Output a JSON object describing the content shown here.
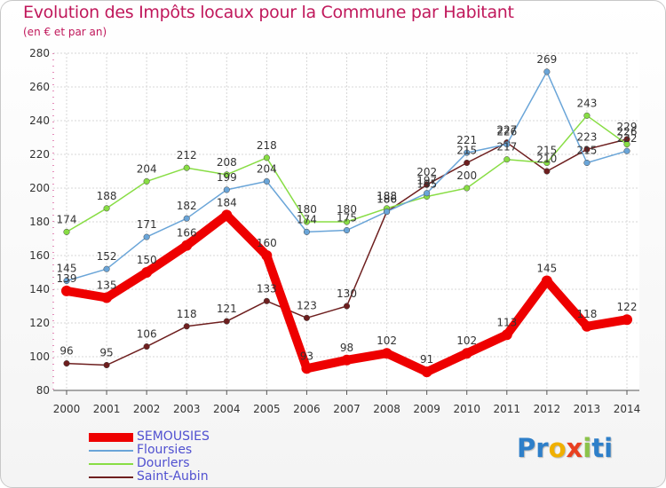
{
  "title": "Evolution des Impôts locaux pour la Commune par Habitant",
  "subtitle": "(en € et par an)",
  "logo": {
    "letters": [
      "P",
      "r",
      "o",
      "x",
      "i",
      "t",
      "i"
    ],
    "colors": [
      "#2e7fc9",
      "#2e7fc9",
      "#f0b000",
      "#e94020",
      "#8bc34a",
      "#2e7fc9",
      "#2e7fc9"
    ]
  },
  "chart_data": {
    "type": "line",
    "x": [
      2000,
      2001,
      2002,
      2003,
      2004,
      2005,
      2006,
      2007,
      2008,
      2009,
      2010,
      2011,
      2012,
      2013,
      2014
    ],
    "ylim": [
      80,
      280
    ],
    "yticks": [
      80,
      100,
      120,
      140,
      160,
      180,
      200,
      220,
      240,
      260,
      280
    ],
    "grid": true,
    "legend_position": "bottom-left",
    "series": [
      {
        "name": "SEMOUSIES",
        "color": "#ee0000",
        "values": [
          139,
          135,
          150,
          166,
          184,
          160,
          93,
          98,
          102,
          91,
          102,
          113,
          145,
          118,
          122
        ]
      },
      {
        "name": "Floursies",
        "color": "#6aa5d8",
        "values": [
          145,
          152,
          171,
          182,
          199,
          204,
          174,
          175,
          186,
          197,
          221,
          226,
          269,
          215,
          222
        ]
      },
      {
        "name": "Dourlers",
        "color": "#88dd44",
        "values": [
          174,
          188,
          204,
          212,
          208,
          218,
          180,
          180,
          188,
          195,
          200,
          217,
          215,
          243,
          226
        ]
      },
      {
        "name": "Saint-Aubin",
        "color": "#6e1f1f",
        "values": [
          96,
          95,
          106,
          118,
          121,
          133,
          123,
          130,
          186,
          202,
          215,
          227,
          210,
          223,
          229
        ]
      }
    ],
    "data_labels": [
      {
        "values": [
          "139",
          "135",
          "150",
          "166",
          "184",
          "160",
          "93",
          "98",
          "102",
          "91",
          "102",
          "113",
          "145",
          "118",
          "122"
        ]
      },
      {
        "values": [
          "145",
          "152",
          "171",
          "182",
          "199",
          "204",
          "174",
          "175",
          "186",
          "197",
          "221",
          "226",
          "269",
          "215",
          "222"
        ]
      },
      {
        "values": [
          "174",
          "188",
          "204",
          "212",
          "208",
          "218",
          "180",
          "180",
          "188",
          "195",
          "200",
          "217",
          "215",
          "243",
          "226"
        ]
      },
      {
        "values": [
          "96",
          "95",
          "106",
          "118",
          "121",
          "133",
          "123",
          "130",
          "186",
          "202",
          "215",
          "227",
          "210",
          "223",
          "229"
        ]
      }
    ]
  }
}
